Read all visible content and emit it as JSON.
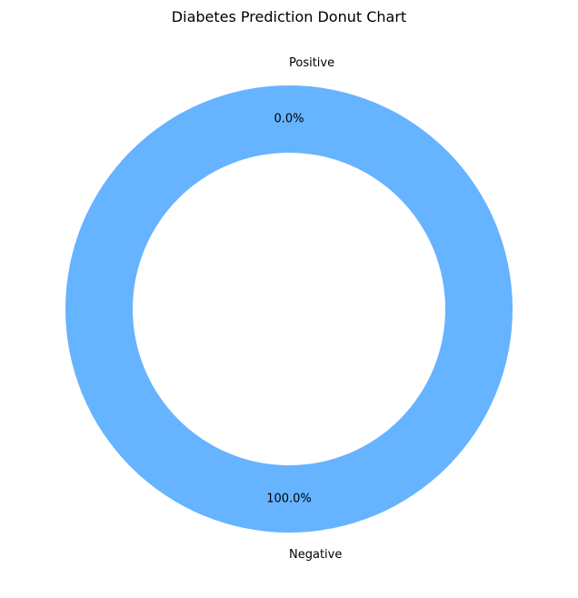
{
  "chart_data": {
    "type": "pie",
    "subtype": "donut",
    "title": "Diabetes Prediction Donut Chart",
    "categories": [
      "Negative",
      "Positive"
    ],
    "values": [
      100.0,
      0.0
    ],
    "percent_labels": [
      "100.0%",
      "0.0%"
    ],
    "colors": [
      "#66b3ff",
      "#ff9999"
    ],
    "legend": "none",
    "grid": false
  }
}
